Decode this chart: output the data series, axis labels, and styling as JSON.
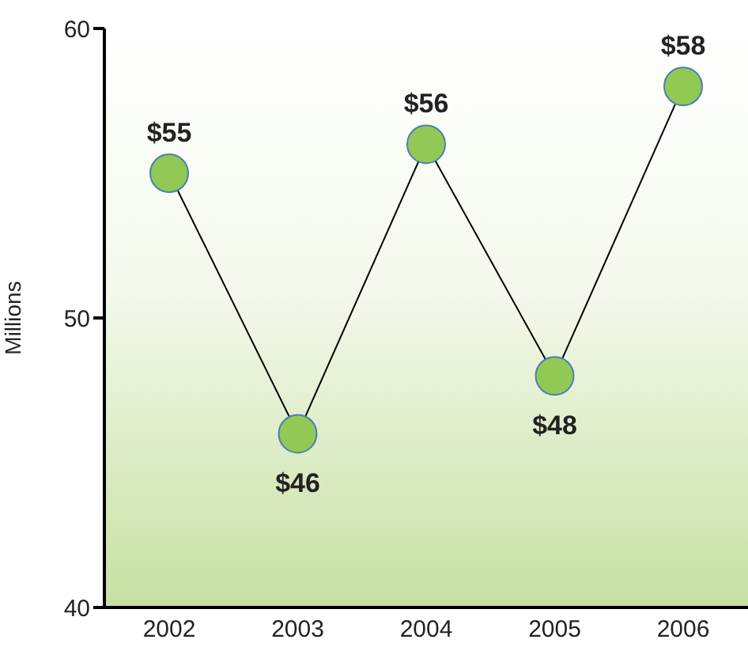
{
  "chart_data": {
    "type": "line",
    "ylabel": "Millions",
    "categories": [
      "2002",
      "2003",
      "2004",
      "2005",
      "2006"
    ],
    "series": [
      {
        "color": "#92c955",
        "values": [
          55,
          46,
          56,
          48,
          58
        ],
        "value_labels": [
          "$55",
          "$46",
          "$56",
          "$48",
          "$58"
        ]
      }
    ],
    "ylim": [
      40,
      60
    ],
    "yticks": [
      40,
      50,
      60
    ],
    "marker": "circle",
    "line_style": "solid"
  }
}
